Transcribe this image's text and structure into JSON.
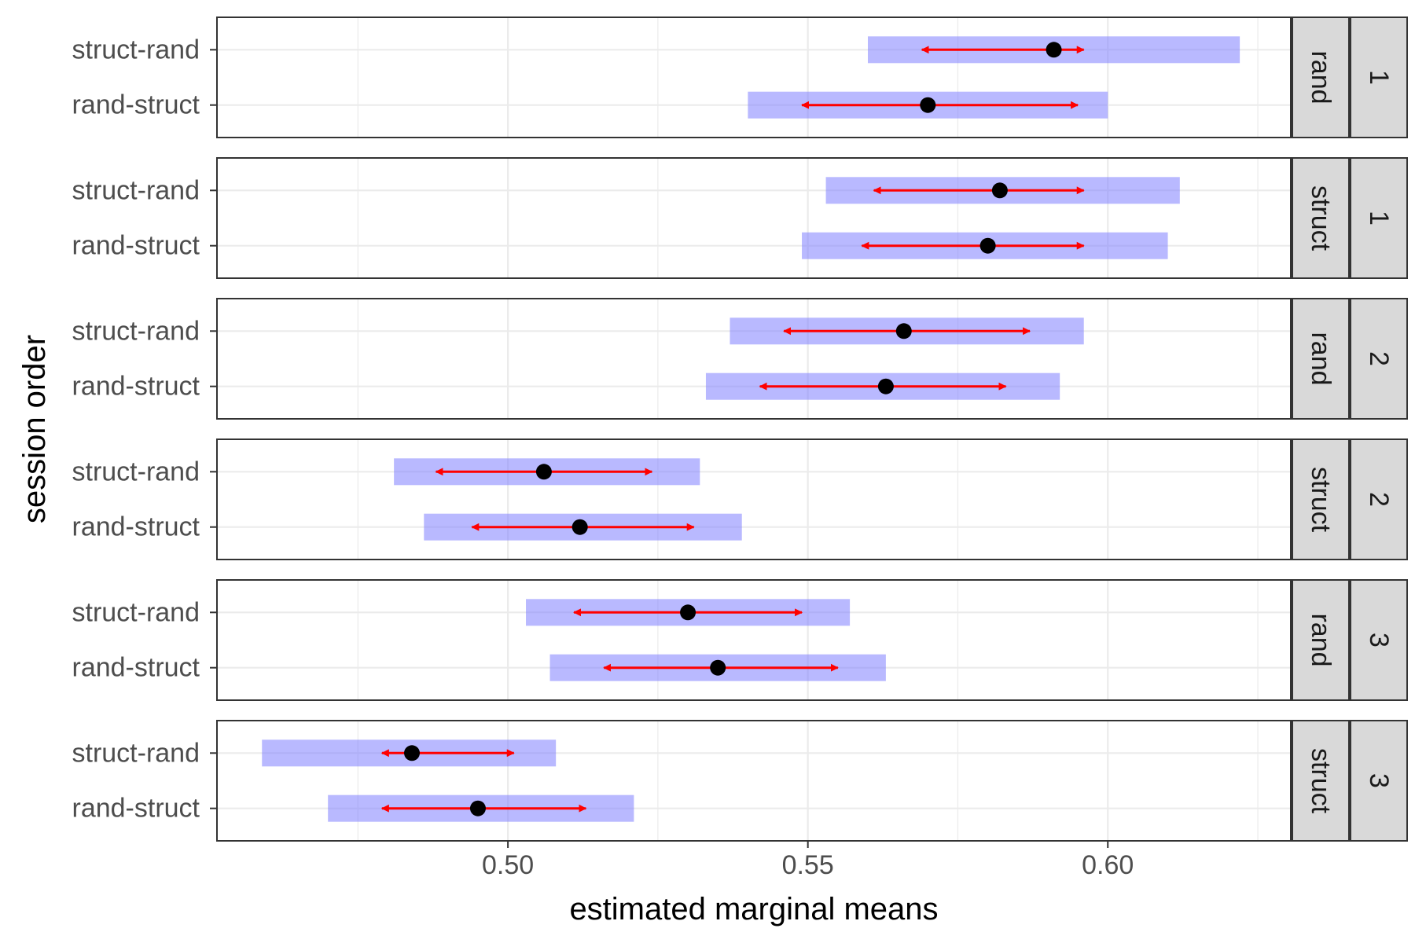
{
  "chart_data": {
    "type": "scatter",
    "xlabel": "estimated marginal means",
    "ylabel": "session order",
    "xlim": [
      0.4515,
      0.6305
    ],
    "x_ticks": [
      0.5,
      0.55,
      0.6
    ],
    "x_tick_labels": [
      "0.50",
      "0.55",
      "0.60"
    ],
    "grid": true,
    "categories": [
      "struct-rand",
      "rand-struct"
    ],
    "colors": {
      "point": "#000000",
      "comparison_arrow": "#ff0000",
      "confidence_band": "#8080ff",
      "strip_fill": "#d9d9d9",
      "panel_border": "#333333",
      "grid": "#ebebeb"
    },
    "panels": [
      {
        "strip_inner": "rand",
        "strip_outer": "1",
        "rows": [
          {
            "label": "struct-rand",
            "emmean": 0.591,
            "ci": [
              0.56,
              0.622
            ],
            "arrow": [
              0.569,
              0.596
            ]
          },
          {
            "label": "rand-struct",
            "emmean": 0.57,
            "ci": [
              0.54,
              0.6
            ],
            "arrow": [
              0.549,
              0.595
            ]
          }
        ]
      },
      {
        "strip_inner": "struct",
        "strip_outer": "1",
        "rows": [
          {
            "label": "struct-rand",
            "emmean": 0.582,
            "ci": [
              0.553,
              0.612
            ],
            "arrow": [
              0.561,
              0.596
            ]
          },
          {
            "label": "rand-struct",
            "emmean": 0.58,
            "ci": [
              0.549,
              0.61
            ],
            "arrow": [
              0.559,
              0.596
            ]
          }
        ]
      },
      {
        "strip_inner": "rand",
        "strip_outer": "2",
        "rows": [
          {
            "label": "struct-rand",
            "emmean": 0.566,
            "ci": [
              0.537,
              0.596
            ],
            "arrow": [
              0.546,
              0.587
            ]
          },
          {
            "label": "rand-struct",
            "emmean": 0.563,
            "ci": [
              0.533,
              0.592
            ],
            "arrow": [
              0.542,
              0.583
            ]
          }
        ]
      },
      {
        "strip_inner": "struct",
        "strip_outer": "2",
        "rows": [
          {
            "label": "struct-rand",
            "emmean": 0.506,
            "ci": [
              0.481,
              0.532
            ],
            "arrow": [
              0.488,
              0.524
            ]
          },
          {
            "label": "rand-struct",
            "emmean": 0.512,
            "ci": [
              0.486,
              0.539
            ],
            "arrow": [
              0.494,
              0.531
            ]
          }
        ]
      },
      {
        "strip_inner": "rand",
        "strip_outer": "3",
        "rows": [
          {
            "label": "struct-rand",
            "emmean": 0.53,
            "ci": [
              0.503,
              0.557
            ],
            "arrow": [
              0.511,
              0.549
            ]
          },
          {
            "label": "rand-struct",
            "emmean": 0.535,
            "ci": [
              0.507,
              0.563
            ],
            "arrow": [
              0.516,
              0.555
            ]
          }
        ]
      },
      {
        "strip_inner": "struct",
        "strip_outer": "3",
        "rows": [
          {
            "label": "struct-rand",
            "emmean": 0.484,
            "ci": [
              0.459,
              0.508
            ],
            "arrow": [
              0.479,
              0.501
            ]
          },
          {
            "label": "rand-struct",
            "emmean": 0.495,
            "ci": [
              0.47,
              0.521
            ],
            "arrow": [
              0.479,
              0.513
            ]
          }
        ]
      }
    ]
  }
}
